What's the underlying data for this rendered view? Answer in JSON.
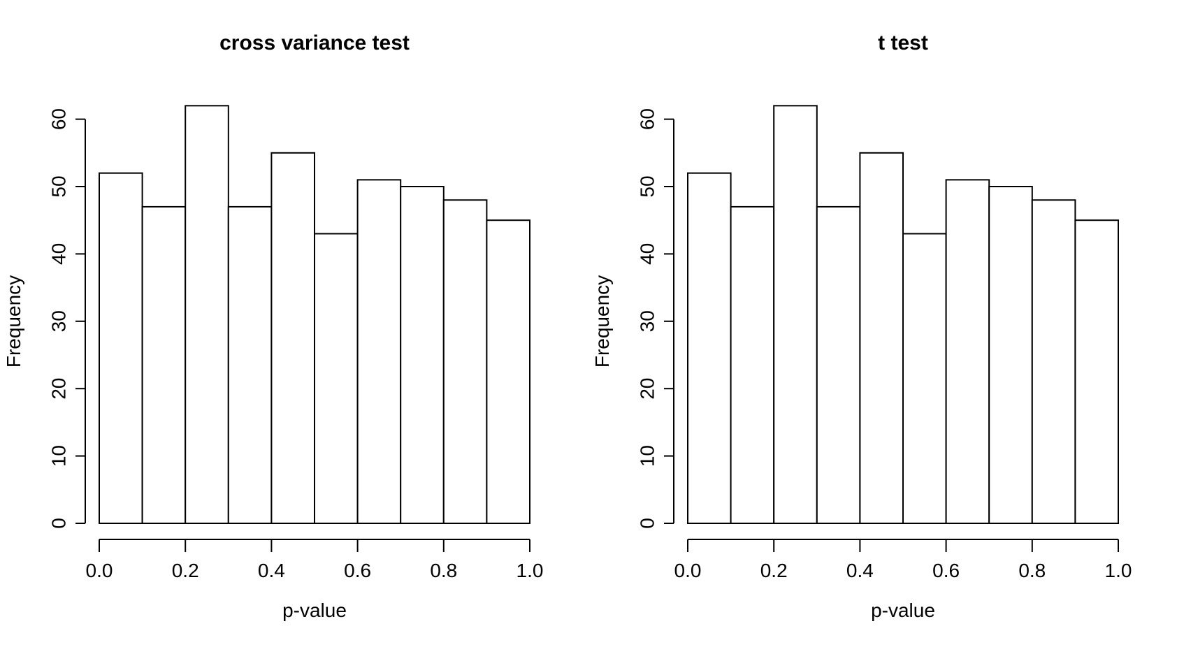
{
  "figure": {
    "background_color": "#ffffff",
    "line_color": "#000000",
    "bar_fill_color": "#ffffff"
  },
  "chart_data": [
    {
      "type": "bar",
      "subtype": "histogram",
      "title": "cross variance test",
      "xlabel": "p-value",
      "ylabel": "Frequency",
      "categories": [
        "0.0-0.1",
        "0.1-0.2",
        "0.2-0.3",
        "0.3-0.4",
        "0.4-0.5",
        "0.5-0.6",
        "0.6-0.7",
        "0.7-0.8",
        "0.8-0.9",
        "0.9-1.0"
      ],
      "values": [
        52,
        47,
        62,
        47,
        55,
        43,
        51,
        50,
        48,
        45
      ],
      "x_ticks": [
        "0.0",
        "0.2",
        "0.4",
        "0.6",
        "0.8",
        "1.0"
      ],
      "y_ticks": [
        0,
        10,
        20,
        30,
        40,
        50,
        60
      ],
      "xlim": [
        0,
        1
      ],
      "ylim": [
        0,
        62
      ],
      "grid": false,
      "legend": null
    },
    {
      "type": "bar",
      "subtype": "histogram",
      "title": "t test",
      "xlabel": "p-value",
      "ylabel": "Frequency",
      "categories": [
        "0.0-0.1",
        "0.1-0.2",
        "0.2-0.3",
        "0.3-0.4",
        "0.4-0.5",
        "0.5-0.6",
        "0.6-0.7",
        "0.7-0.8",
        "0.8-0.9",
        "0.9-1.0"
      ],
      "values": [
        52,
        47,
        62,
        47,
        55,
        43,
        51,
        50,
        48,
        45
      ],
      "x_ticks": [
        "0.0",
        "0.2",
        "0.4",
        "0.6",
        "0.8",
        "1.0"
      ],
      "y_ticks": [
        0,
        10,
        20,
        30,
        40,
        50,
        60
      ],
      "xlim": [
        0,
        1
      ],
      "ylim": [
        0,
        62
      ],
      "grid": false,
      "legend": null
    }
  ]
}
